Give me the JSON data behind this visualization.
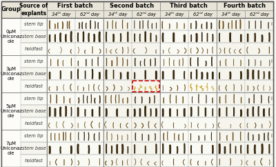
{
  "batch_labels": [
    "First batch",
    "Second batch",
    "Third batch",
    "Fourth batch"
  ],
  "day_labels": [
    "34ᵗʰ day",
    "62ⁿᵈ day"
  ],
  "group_labels": [
    "0μM\nUniconaz\nole",
    "3μM\nUniconaz\nole",
    "5μM\nUniconaz\nole",
    "7μM\nUniconaz\nole"
  ],
  "source_labels": [
    "stem tip",
    "stem base",
    "holdfast"
  ],
  "fig_bg": "#f8f6f0",
  "header_bg": "#e8e4d8",
  "white": "#fdfcf8",
  "solid": "#888888",
  "dotted": "#aaaaaa",
  "bold": "#555555",
  "red_box": "#cc2222",
  "seedling_dark": "#3a2a10",
  "seedling_mid": "#6b4c18",
  "seedling_gold": "#c8a020",
  "highlight_box_color": "#cc0000",
  "header_fontsize": 6.0,
  "source_fontsize": 4.8,
  "group_fontsize": 5.5,
  "day_fontsize": 4.8
}
